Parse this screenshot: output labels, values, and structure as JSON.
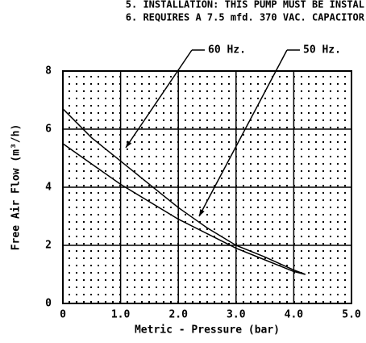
{
  "chart_data": {
    "type": "line",
    "notes": [
      "5. INSTALLATION: THIS PUMP MUST BE INSTAL",
      "6. REQUIRES A 7.5 mfd. 370 VAC. CAPACITOR"
    ],
    "xlabel": "Metric - Pressure (bar)",
    "ylabel": "Free Air Flow (m³/h)",
    "xlim": [
      0,
      5
    ],
    "ylim": [
      0,
      8
    ],
    "xticks": [
      0,
      {
        "value": 1,
        "label": "1.0"
      },
      {
        "value": 2,
        "label": "2.0"
      },
      {
        "value": 3,
        "label": "3.0"
      },
      {
        "value": 4,
        "label": "4.0"
      },
      {
        "value": 5,
        "label": "5.0"
      }
    ],
    "yticks": [
      0,
      2,
      4,
      6,
      8
    ],
    "grid": true,
    "series": [
      {
        "name": "60 Hz.",
        "color": "#000000",
        "x": [
          0,
          0.5,
          1,
          1.5,
          2,
          2.5,
          3,
          3.5,
          4,
          4.2
        ],
        "values": [
          6.7,
          5.7,
          4.9,
          4.1,
          3.3,
          2.6,
          2.0,
          1.6,
          1.15,
          1.0
        ]
      },
      {
        "name": "50 Hz.",
        "color": "#000000",
        "x": [
          0,
          0.5,
          1,
          1.5,
          2,
          2.5,
          3,
          3.5,
          4,
          4.2
        ],
        "values": [
          5.5,
          4.8,
          4.1,
          3.5,
          2.9,
          2.4,
          1.9,
          1.5,
          1.1,
          1.0
        ]
      }
    ]
  }
}
